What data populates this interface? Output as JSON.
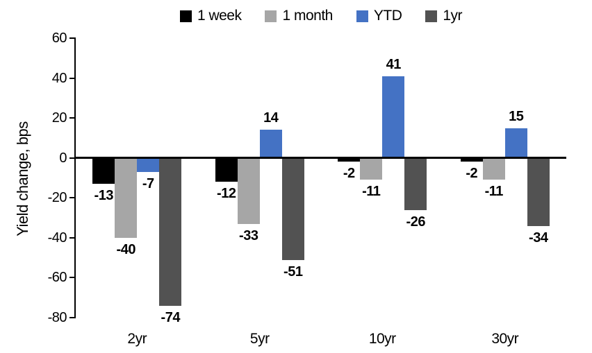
{
  "chart_data": {
    "type": "bar",
    "title": "",
    "xlabel": "",
    "ylabel": "Yield change, bps",
    "categories": [
      "2yr",
      "5yr",
      "10yr",
      "30yr"
    ],
    "series": [
      {
        "name": "1 week",
        "color": "#000000",
        "values": [
          -13,
          -12,
          -2,
          -2
        ]
      },
      {
        "name": "1 month",
        "color": "#A6A6A6",
        "values": [
          -40,
          -33,
          -11,
          -11
        ]
      },
      {
        "name": "YTD",
        "color": "#4472C4",
        "values": [
          -7,
          14,
          41,
          15
        ]
      },
      {
        "name": "1yr",
        "color": "#525252",
        "values": [
          -74,
          -51,
          -26,
          -34
        ]
      }
    ],
    "ylim": [
      -80,
      60
    ],
    "yticks": [
      60,
      40,
      20,
      0,
      -20,
      -40,
      -60,
      -80
    ],
    "grid": false,
    "legend_position": "top",
    "data_labels": true,
    "axis_color": "#000000",
    "background": "#FFFFFF"
  }
}
